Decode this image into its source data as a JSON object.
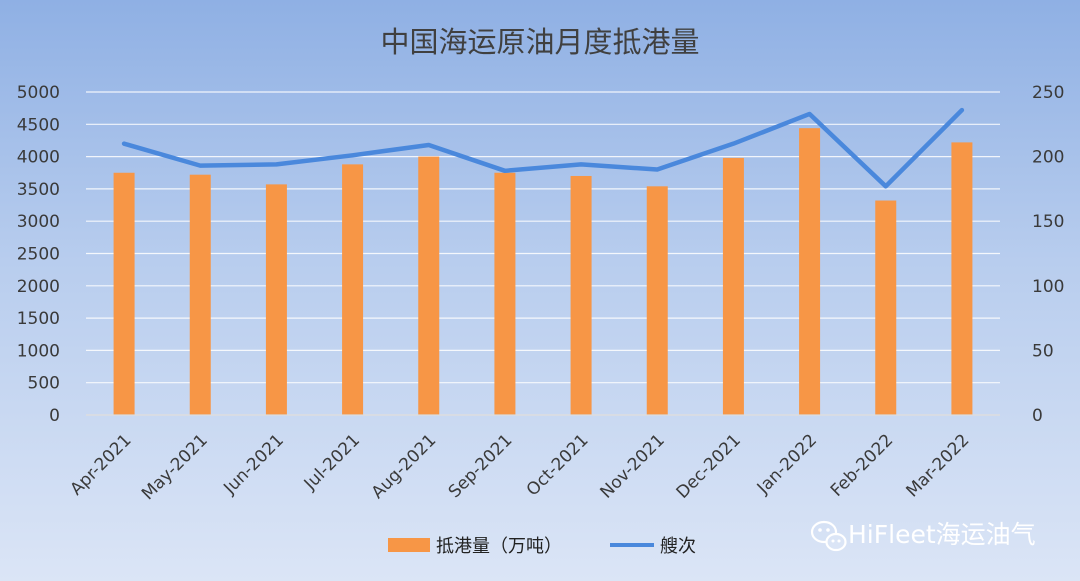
{
  "chart_data": {
    "type": "bar",
    "title": "中国海运原油月度抵港量",
    "categories": [
      "Apr-2021",
      "May-2021",
      "Jun-2021",
      "Jul-2021",
      "Aug-2021",
      "Sep-2021",
      "Oct-2021",
      "Nov-2021",
      "Dec-2021",
      "Jan-2022",
      "Feb-2022",
      "Mar-2022"
    ],
    "series": [
      {
        "name": "抵港量（万吨）",
        "type": "bar",
        "axis": "left",
        "color": "#f79646",
        "values": [
          3750,
          3720,
          3570,
          3880,
          4000,
          3750,
          3700,
          3540,
          3980,
          4440,
          3320,
          4220
        ]
      },
      {
        "name": "艘次",
        "type": "line",
        "axis": "right",
        "color": "#4a88dc",
        "values": [
          210,
          193,
          194,
          201,
          209,
          189,
          194,
          190,
          210,
          233,
          177,
          236
        ]
      }
    ],
    "y_left": {
      "min": 0,
      "max": 5000,
      "ticks": [
        "0",
        "500",
        "1000",
        "1500",
        "2000",
        "2500",
        "3000",
        "3500",
        "4000",
        "4500",
        "5000"
      ]
    },
    "y_right": {
      "min": 0,
      "max": 250,
      "ticks": [
        "0",
        "50",
        "100",
        "150",
        "200",
        "250"
      ]
    },
    "grid": true,
    "legend_position": "bottom"
  },
  "watermark": {
    "text": "HiFleet海运油气",
    "icon": "wechat-icon"
  }
}
